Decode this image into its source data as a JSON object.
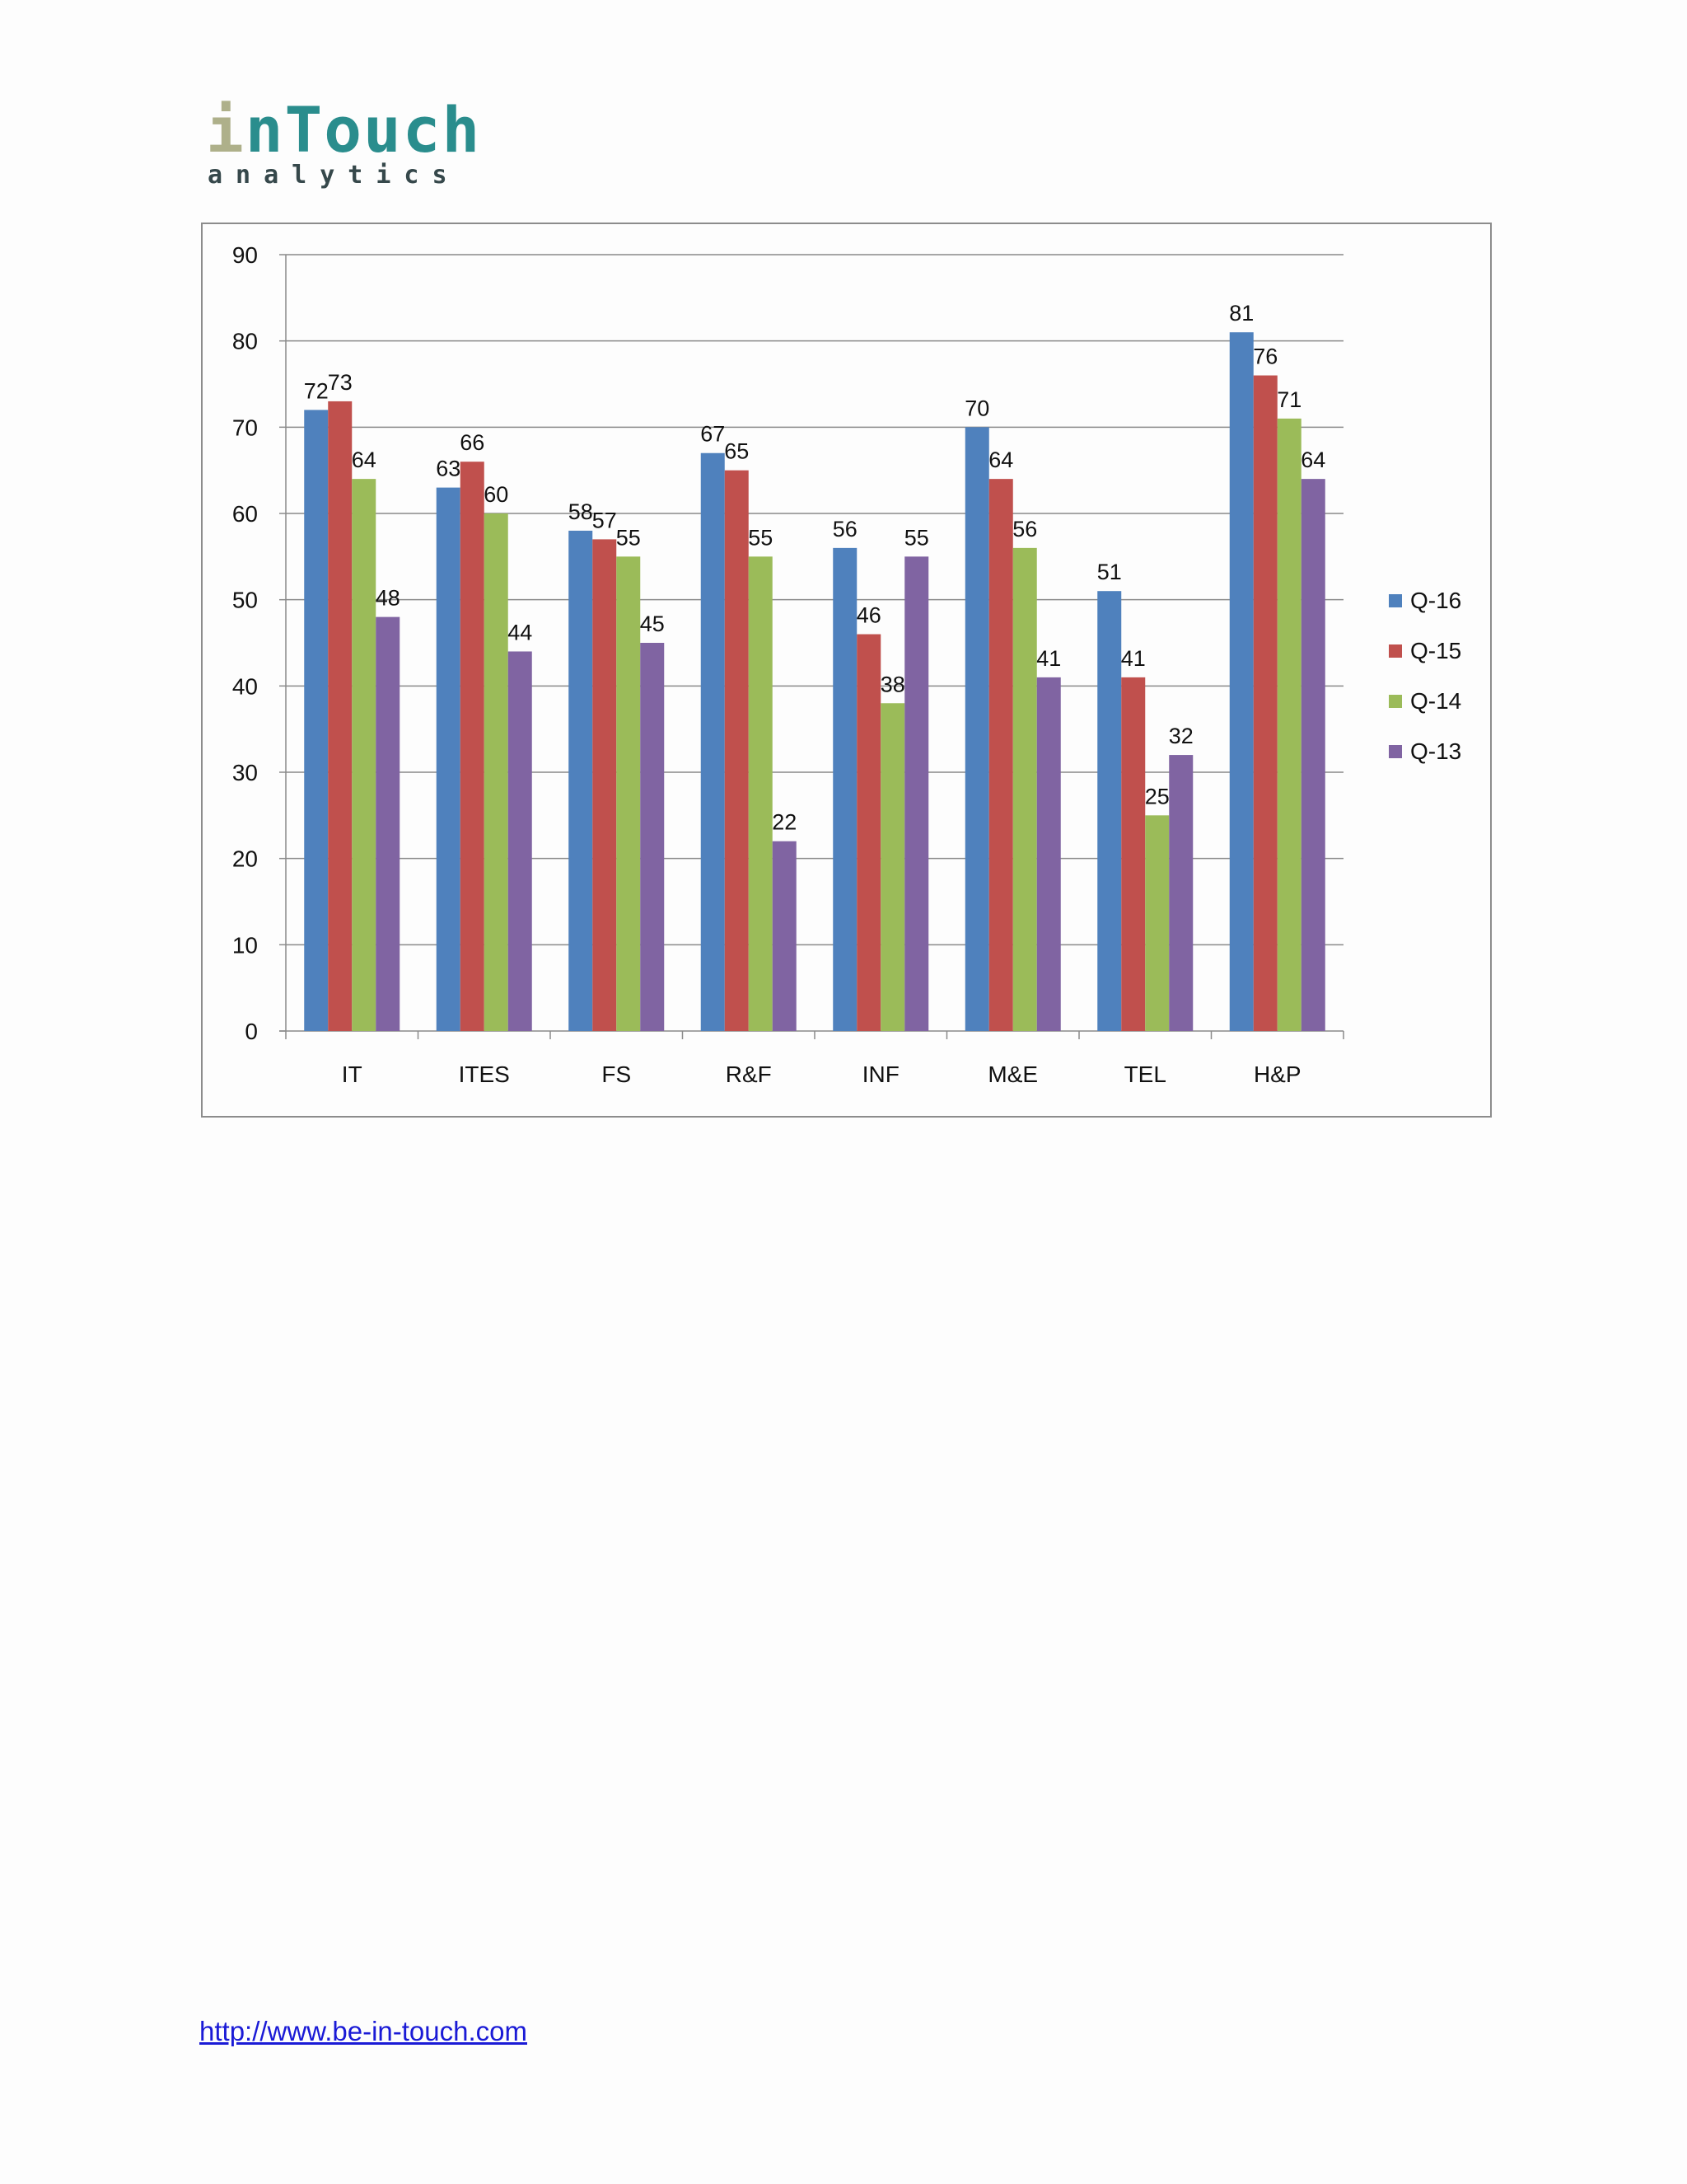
{
  "logo": {
    "main_first": "i",
    "main_rest": "nTouch",
    "sub": "analytics"
  },
  "footer": {
    "link_text": "http://www.be-in-touch.com"
  },
  "chart_data": {
    "type": "bar",
    "categories": [
      "IT",
      "ITES",
      "FS",
      "R&F",
      "INF",
      "M&E",
      "TEL",
      "H&P"
    ],
    "series": [
      {
        "name": "Q-16",
        "color": "#4f81bd",
        "values": [
          72,
          63,
          58,
          67,
          56,
          70,
          51,
          81
        ]
      },
      {
        "name": "Q-15",
        "color": "#c0504d",
        "values": [
          73,
          66,
          57,
          65,
          46,
          64,
          41,
          76
        ]
      },
      {
        "name": "Q-14",
        "color": "#9bbb59",
        "values": [
          64,
          60,
          55,
          55,
          38,
          56,
          25,
          71
        ]
      },
      {
        "name": "Q-13",
        "color": "#8064a2",
        "values": [
          48,
          44,
          45,
          22,
          55,
          41,
          32,
          64
        ]
      }
    ],
    "ylim": [
      0,
      90
    ],
    "yticks": [
      0,
      10,
      20,
      30,
      40,
      50,
      60,
      70,
      80,
      90
    ],
    "grid": true,
    "legend": "right",
    "data_labels": true
  }
}
